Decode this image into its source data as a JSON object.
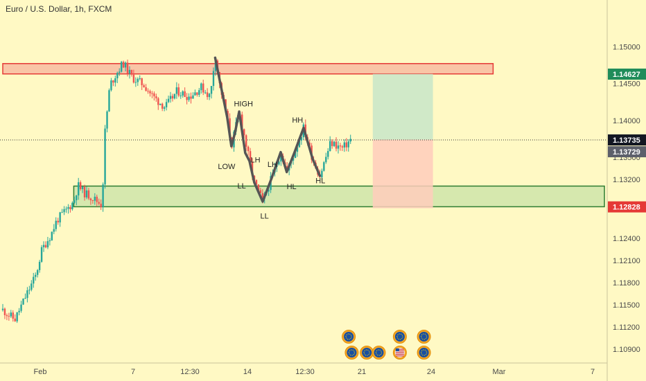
{
  "header": {
    "title": "Euro / U.S. Dollar, 1h, FXCM"
  },
  "colors": {
    "background": "#fff9c4",
    "up": "#26a69a",
    "down": "#ef5350",
    "resistance_fill": "#f8bfa3",
    "resistance_stroke": "#e53935",
    "support_fill": "#c5e1a5",
    "support_stroke": "#2e7d32",
    "target_zone": "#c8e6c9",
    "stop_zone": "#ffccbc",
    "path": "#555555"
  },
  "chart_data": {
    "type": "candlestick",
    "symbol": "EURUSD",
    "timeframe": "1h",
    "ylim": [
      1.1075,
      1.1535
    ],
    "y_ticks": [
      "1.15000",
      "1.14500",
      "1.14000",
      "1.13500",
      "1.13200",
      "1.12800",
      "1.12400",
      "1.12100",
      "1.11800",
      "1.11500",
      "1.11200",
      "1.10900"
    ],
    "x_ticks": [
      "Feb",
      "7",
      "12:30",
      "14",
      "12:30",
      "21",
      "24",
      "Mar",
      "7"
    ],
    "x_tick_pos": [
      0.0,
      0.185,
      0.29,
      0.385,
      0.485,
      0.6,
      0.715,
      0.835,
      1.0
    ],
    "price_tags": [
      {
        "label": "1.14627",
        "value": 1.14627,
        "color": "#1f8c5a"
      },
      {
        "label": "1.13735",
        "value": 1.13735,
        "color": "#131722"
      },
      {
        "label": "1.13729",
        "value": 1.13729,
        "color": "#5d606b"
      },
      {
        "label": "1.12828",
        "value": 1.12828,
        "color": "#e53935"
      }
    ],
    "current_price": 1.13735,
    "zones": [
      {
        "name": "resistance",
        "from": 0.0,
        "to": 0.815,
        "low": 1.1463,
        "high": 1.1477
      },
      {
        "name": "support",
        "from": 0.118,
        "to": 1.0,
        "low": 1.1283,
        "high": 1.1311
      }
    ],
    "position": {
      "from": 0.615,
      "to": 0.715,
      "entry": 1.1374,
      "target": 1.1463,
      "stop": 1.1281
    },
    "annotations": [
      {
        "text": "HIGH",
        "t": 0.4,
        "y": 1.1419
      },
      {
        "text": "LOW",
        "t": 0.372,
        "y": 1.1334
      },
      {
        "text": "LH",
        "t": 0.42,
        "y": 1.1343
      },
      {
        "text": "LH",
        "t": 0.448,
        "y": 1.1337
      },
      {
        "text": "HH",
        "t": 0.49,
        "y": 1.1397
      },
      {
        "text": "LL",
        "t": 0.397,
        "y": 1.1308
      },
      {
        "text": "HL",
        "t": 0.48,
        "y": 1.1307
      },
      {
        "text": "HL",
        "t": 0.528,
        "y": 1.1315
      },
      {
        "text": "LL",
        "t": 0.435,
        "y": 1.1267
      }
    ],
    "path": [
      {
        "t": 0.353,
        "y": 1.1485
      },
      {
        "t": 0.373,
        "y": 1.1404
      },
      {
        "t": 0.38,
        "y": 1.1365
      },
      {
        "t": 0.386,
        "y": 1.1383
      },
      {
        "t": 0.393,
        "y": 1.1412
      },
      {
        "t": 0.403,
        "y": 1.1356
      },
      {
        "t": 0.41,
        "y": 1.1345
      },
      {
        "t": 0.418,
        "y": 1.1316
      },
      {
        "t": 0.432,
        "y": 1.129
      },
      {
        "t": 0.447,
        "y": 1.1322
      },
      {
        "t": 0.462,
        "y": 1.1357
      },
      {
        "t": 0.472,
        "y": 1.133
      },
      {
        "t": 0.485,
        "y": 1.1357
      },
      {
        "t": 0.5,
        "y": 1.139
      },
      {
        "t": 0.515,
        "y": 1.1348
      },
      {
        "t": 0.527,
        "y": 1.1325
      }
    ],
    "events": [
      {
        "t": 0.575,
        "row": 1,
        "icon": "eu-flag-icon"
      },
      {
        "t": 0.58,
        "row": 2,
        "icon": "eu-flag-icon"
      },
      {
        "t": 0.605,
        "row": 2,
        "icon": "eu-flag-icon"
      },
      {
        "t": 0.625,
        "row": 2,
        "icon": "eu-flag-icon"
      },
      {
        "t": 0.66,
        "row": 1,
        "icon": "eu-flag-icon"
      },
      {
        "t": 0.66,
        "row": 2,
        "icon": "us-flag-icon"
      },
      {
        "t": 0.7,
        "row": 1,
        "icon": "eu-flag-icon"
      },
      {
        "t": 0.7,
        "row": 2,
        "icon": "eu-flag-icon"
      }
    ],
    "price_anchors": [
      [
        0.0,
        1.1143
      ],
      [
        0.02,
        1.113
      ],
      [
        0.04,
        1.1165
      ],
      [
        0.055,
        1.119
      ],
      [
        0.065,
        1.1225
      ],
      [
        0.08,
        1.1245
      ],
      [
        0.09,
        1.1265
      ],
      [
        0.105,
        1.1278
      ],
      [
        0.118,
        1.129
      ],
      [
        0.125,
        1.1312
      ],
      [
        0.135,
        1.1302
      ],
      [
        0.15,
        1.1295
      ],
      [
        0.165,
        1.1285
      ],
      [
        0.17,
        1.1385
      ],
      [
        0.178,
        1.1448
      ],
      [
        0.19,
        1.1465
      ],
      [
        0.2,
        1.1478
      ],
      [
        0.215,
        1.1458
      ],
      [
        0.235,
        1.1448
      ],
      [
        0.25,
        1.1432
      ],
      [
        0.27,
        1.1418
      ],
      [
        0.29,
        1.144
      ],
      [
        0.31,
        1.1432
      ],
      [
        0.33,
        1.1445
      ],
      [
        0.345,
        1.1432
      ],
      [
        0.353,
        1.149
      ],
      [
        0.36,
        1.145
      ],
      [
        0.373,
        1.1404
      ],
      [
        0.38,
        1.1365
      ],
      [
        0.393,
        1.1412
      ],
      [
        0.41,
        1.1345
      ],
      [
        0.418,
        1.1316
      ],
      [
        0.432,
        1.129
      ],
      [
        0.447,
        1.1322
      ],
      [
        0.462,
        1.1357
      ],
      [
        0.472,
        1.133
      ],
      [
        0.485,
        1.1357
      ],
      [
        0.5,
        1.139
      ],
      [
        0.515,
        1.1348
      ],
      [
        0.527,
        1.1325
      ],
      [
        0.545,
        1.137
      ],
      [
        0.565,
        1.1362
      ],
      [
        0.578,
        1.1374
      ]
    ]
  }
}
